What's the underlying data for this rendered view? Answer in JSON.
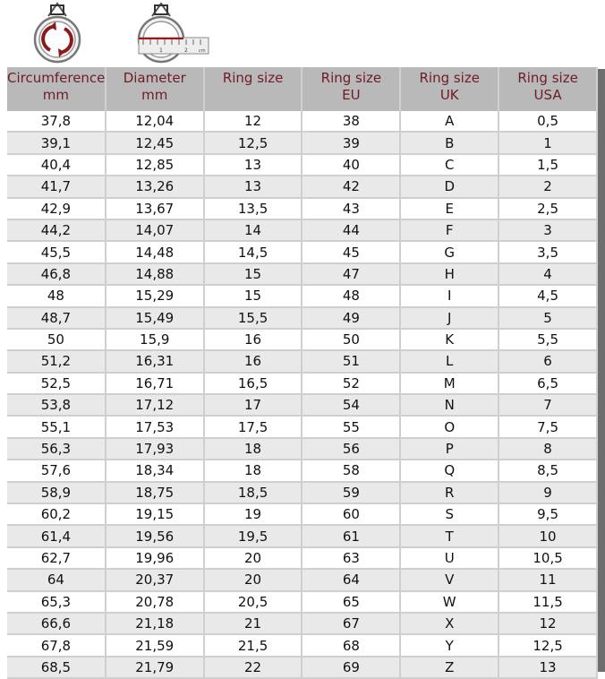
{
  "colors": {
    "header_bg": "#b9b9b9",
    "header_text": "#6e1c26",
    "row_alt": "#e9e9e9",
    "icon_accent": "#8b1a1a"
  },
  "icons": [
    "ring-circumference-icon",
    "ring-diameter-ruler-icon"
  ],
  "ruler_labels": [
    "1",
    "2",
    "cm"
  ],
  "headers": [
    [
      "Circumference",
      "mm"
    ],
    [
      "Diameter",
      "mm"
    ],
    [
      "Ring size",
      ""
    ],
    [
      "Ring size",
      "EU"
    ],
    [
      "Ring size",
      "UK"
    ],
    [
      "Ring size",
      "USA"
    ]
  ],
  "rows": [
    [
      "37,8",
      "12,04",
      "12",
      "38",
      "A",
      "0,5"
    ],
    [
      "39,1",
      "12,45",
      "12,5",
      "39",
      "B",
      "1"
    ],
    [
      "40,4",
      "12,85",
      "13",
      "40",
      "C",
      "1,5"
    ],
    [
      "41,7",
      "13,26",
      "13",
      "42",
      "D",
      "2"
    ],
    [
      "42,9",
      "13,67",
      "13,5",
      "43",
      "E",
      "2,5"
    ],
    [
      "44,2",
      "14,07",
      "14",
      "44",
      "F",
      "3"
    ],
    [
      "45,5",
      "14,48",
      "14,5",
      "45",
      "G",
      "3,5"
    ],
    [
      "46,8",
      "14,88",
      "15",
      "47",
      "H",
      "4"
    ],
    [
      "48",
      "15,29",
      "15",
      "48",
      "I",
      "4,5"
    ],
    [
      "48,7",
      "15,49",
      "15,5",
      "49",
      "J",
      "5"
    ],
    [
      "50",
      "15,9",
      "16",
      "50",
      "K",
      "5,5"
    ],
    [
      "51,2",
      "16,31",
      "16",
      "51",
      "L",
      "6"
    ],
    [
      "52,5",
      "16,71",
      "16,5",
      "52",
      "M",
      "6,5"
    ],
    [
      "53,8",
      "17,12",
      "17",
      "54",
      "N",
      "7"
    ],
    [
      "55,1",
      "17,53",
      "17,5",
      "55",
      "O",
      "7,5"
    ],
    [
      "56,3",
      "17,93",
      "18",
      "56",
      "P",
      "8"
    ],
    [
      "57,6",
      "18,34",
      "18",
      "58",
      "Q",
      "8,5"
    ],
    [
      "58,9",
      "18,75",
      "18,5",
      "59",
      "R",
      "9"
    ],
    [
      "60,2",
      "19,15",
      "19",
      "60",
      "S",
      "9,5"
    ],
    [
      "61,4",
      "19,56",
      "19,5",
      "61",
      "T",
      "10"
    ],
    [
      "62,7",
      "19,96",
      "20",
      "63",
      "U",
      "10,5"
    ],
    [
      "64",
      "20,37",
      "20",
      "64",
      "V",
      "11"
    ],
    [
      "65,3",
      "20,78",
      "20,5",
      "65",
      "W",
      "11,5"
    ],
    [
      "66,6",
      "21,18",
      "21",
      "67",
      "X",
      "12"
    ],
    [
      "67,8",
      "21,59",
      "21,5",
      "68",
      "Y",
      "12,5"
    ],
    [
      "68,5",
      "21,79",
      "22",
      "69",
      "Z",
      "13"
    ]
  ]
}
